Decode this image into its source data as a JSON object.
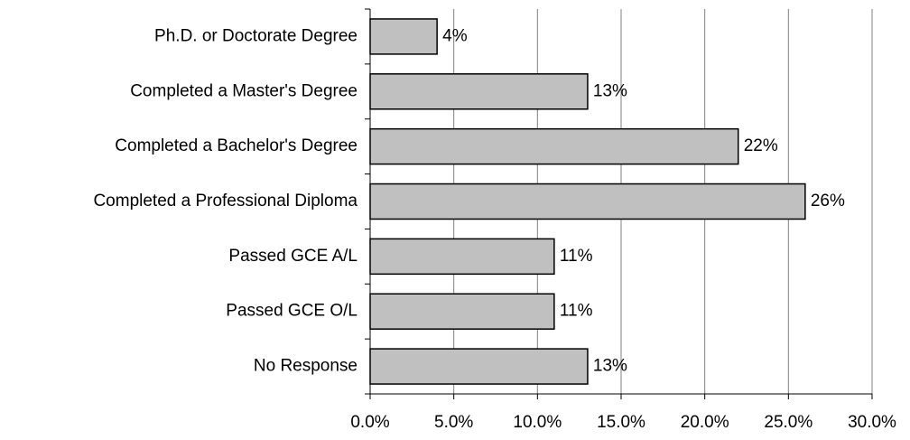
{
  "chart_data": {
    "type": "bar",
    "orientation": "horizontal",
    "categories": [
      "Ph.D. or Doctorate Degree",
      "Completed a Master's Degree",
      "Completed a Bachelor's Degree",
      "Completed a Professional Diploma",
      "Passed GCE A/L",
      "Passed GCE O/L",
      "No Response"
    ],
    "values": [
      4,
      13,
      22,
      26,
      11,
      11,
      13
    ],
    "value_labels": [
      "4%",
      "13%",
      "22%",
      "26%",
      "11%",
      "11%",
      "13%"
    ],
    "color": "#c0c0c0",
    "xlim": [
      0,
      30
    ],
    "xticks": [
      {
        "value": 0,
        "label": "0.0%"
      },
      {
        "value": 5,
        "label": "5.0%"
      },
      {
        "value": 10,
        "label": "10.0%"
      },
      {
        "value": 15,
        "label": "15.0%"
      },
      {
        "value": 20,
        "label": "20.0%"
      },
      {
        "value": 25,
        "label": "25.0%"
      },
      {
        "value": 30,
        "label": "30.0%"
      }
    ],
    "grid": true
  }
}
